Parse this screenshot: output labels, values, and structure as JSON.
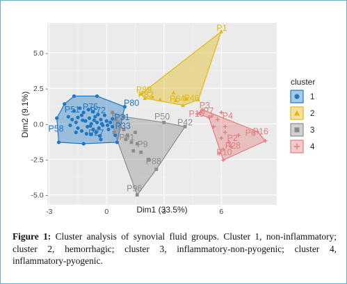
{
  "chart_data": {
    "type": "scatter",
    "title": "",
    "xlabel": "Dim1 (33.5%)",
    "ylabel": "Dim2 (9.1%)",
    "xlim": [
      -3.1,
      8.9
    ],
    "ylim": [
      -5.7,
      7.1
    ],
    "xticks": [
      -3,
      0,
      3,
      6
    ],
    "xtick_labels": [
      "-3",
      "0",
      "3",
      "6"
    ],
    "yticks": [
      5.0,
      2.5,
      0.0,
      -2.5,
      -5.0
    ],
    "ytick_labels": [
      "5.0 -",
      "2.5 -",
      "0.0 -",
      "-2.5 -",
      "-5.0 -"
    ],
    "grid": true,
    "legend_position": "right",
    "legend_title": "cluster",
    "series": [
      {
        "name": "1",
        "color": "#1f77c4",
        "marker": "circle",
        "hull": [
          [
            -2.5,
            -1.3
          ],
          [
            -2.6,
            0.4
          ],
          [
            -2.2,
            1.4
          ],
          [
            -1.7,
            1.95
          ],
          [
            -0.5,
            1.95
          ],
          [
            0.95,
            1.2
          ],
          [
            0.55,
            -1.3
          ],
          [
            -1.2,
            -1.4
          ]
        ],
        "points": [
          [
            -2.0,
            0.5
          ],
          [
            -1.8,
            0.3
          ],
          [
            -1.6,
            0.1
          ],
          [
            -1.5,
            -0.3
          ],
          [
            -1.3,
            0.6
          ],
          [
            -1.1,
            0.2
          ],
          [
            -1.0,
            -0.2
          ],
          [
            -0.9,
            0.4
          ],
          [
            -0.8,
            0.0
          ],
          [
            -0.7,
            -0.4
          ],
          [
            -0.6,
            0.5
          ],
          [
            -0.5,
            0.1
          ],
          [
            -0.4,
            -0.3
          ],
          [
            -0.3,
            0.3
          ],
          [
            -0.2,
            -0.1
          ],
          [
            -0.1,
            0.6
          ],
          [
            0.0,
            0.2
          ],
          [
            0.1,
            -0.4
          ],
          [
            0.2,
            0.1
          ],
          [
            0.3,
            -0.2
          ],
          [
            -1.7,
            0.9
          ],
          [
            -1.4,
            1.1
          ],
          [
            -1.2,
            0.8
          ],
          [
            -0.95,
            1.0
          ],
          [
            -0.7,
            0.85
          ],
          [
            -1.9,
            -0.1
          ],
          [
            -1.6,
            -0.6
          ],
          [
            -1.3,
            -0.5
          ],
          [
            -1.05,
            -0.7
          ],
          [
            -0.8,
            -0.75
          ],
          [
            -0.55,
            -0.6
          ],
          [
            -0.35,
            -0.85
          ],
          [
            -1.5,
            0.45
          ],
          [
            -1.25,
            0.25
          ],
          [
            -0.85,
            -0.15
          ],
          [
            -0.65,
            0.25
          ],
          [
            -0.45,
            0.65
          ],
          [
            -0.25,
            0.0
          ],
          [
            0.05,
            -0.1
          ],
          [
            0.3,
            0.35
          ],
          [
            -2.5,
            -1.3
          ],
          [
            -2.2,
            1.4
          ],
          [
            -1.7,
            1.95
          ],
          [
            -0.5,
            1.95
          ],
          [
            0.95,
            1.2
          ],
          [
            0.55,
            -1.3
          ],
          [
            -1.2,
            -1.4
          ],
          [
            -2.6,
            0.4
          ],
          [
            -0.3,
            -1.1
          ],
          [
            0.45,
            -0.8
          ]
        ],
        "labels": [
          {
            "text": "P80",
            "x": 0.9,
            "y": 1.25
          },
          {
            "text": "P75",
            "x": -1.25,
            "y": 1.0
          },
          {
            "text": "P51",
            "x": -2.2,
            "y": 0.8
          },
          {
            "text": "P72",
            "x": -0.85,
            "y": 0.75
          },
          {
            "text": "P58",
            "x": -3.05,
            "y": -0.55
          },
          {
            "text": "P27",
            "x": -0.95,
            "y": -0.85
          },
          {
            "text": "P31",
            "x": 0.4,
            "y": 0.25
          },
          {
            "text": "P33",
            "x": 0.45,
            "y": -0.35
          }
        ]
      },
      {
        "name": "2",
        "color": "#e2b811",
        "marker": "triangle",
        "hull": [
          [
            6.0,
            6.5
          ],
          [
            1.8,
            2.1
          ],
          [
            2.0,
            1.8
          ],
          [
            4.0,
            1.3
          ],
          [
            4.8,
            1.7
          ]
        ],
        "points": [
          [
            6.0,
            6.5
          ],
          [
            1.8,
            2.1
          ],
          [
            2.0,
            1.8
          ],
          [
            4.0,
            1.3
          ],
          [
            4.8,
            1.7
          ],
          [
            3.5,
            2.2
          ],
          [
            3.6,
            1.65
          ],
          [
            4.2,
            1.75
          ],
          [
            2.4,
            1.9
          ],
          [
            2.8,
            1.7
          ]
        ],
        "labels": [
          {
            "text": "P1",
            "x": 5.75,
            "y": 6.55
          },
          {
            "text": "P89",
            "x": 1.55,
            "y": 2.2
          },
          {
            "text": "P82",
            "x": 1.65,
            "y": 1.85
          },
          {
            "text": "P64",
            "x": 3.3,
            "y": 1.55
          },
          {
            "text": "P46",
            "x": 4.05,
            "y": 1.6
          }
        ]
      },
      {
        "name": "3",
        "color": "#8c8c8c",
        "marker": "square",
        "hull": [
          [
            0.3,
            0.8
          ],
          [
            0.4,
            -0.6
          ],
          [
            1.6,
            -5.0
          ],
          [
            2.6,
            -3.2
          ],
          [
            4.1,
            -0.2
          ],
          [
            3.0,
            0.1
          ],
          [
            0.9,
            0.5
          ]
        ],
        "points": [
          [
            0.3,
            0.8
          ],
          [
            0.4,
            -0.6
          ],
          [
            1.6,
            -5.0
          ],
          [
            2.6,
            -3.2
          ],
          [
            4.1,
            -0.2
          ],
          [
            3.0,
            0.1
          ],
          [
            0.9,
            0.5
          ],
          [
            1.3,
            -1.3
          ],
          [
            1.6,
            -1.4
          ],
          [
            1.1,
            -0.8
          ],
          [
            0.9,
            -0.4
          ],
          [
            0.6,
            0.1
          ],
          [
            1.8,
            -2.0
          ],
          [
            2.2,
            -2.5
          ],
          [
            1.4,
            -1.9
          ],
          [
            0.7,
            -0.2
          ],
          [
            1.5,
            -0.6
          ],
          [
            0.5,
            0.3
          ],
          [
            1.0,
            -1.1
          ]
        ],
        "labels": [
          {
            "text": "P50",
            "x": 2.5,
            "y": 0.3
          },
          {
            "text": "P42",
            "x": 3.7,
            "y": -0.1
          },
          {
            "text": "P91",
            "x": 0.65,
            "y": -1.15
          },
          {
            "text": "P9",
            "x": 1.6,
            "y": -1.65
          },
          {
            "text": "P88",
            "x": 2.05,
            "y": -2.85
          },
          {
            "text": "P96",
            "x": 1.05,
            "y": -4.75
          }
        ]
      },
      {
        "name": "4",
        "color": "#e37d7d",
        "marker": "plus",
        "hull": [
          [
            5.0,
            1.0
          ],
          [
            4.9,
            0.8
          ],
          [
            4.75,
            0.7
          ],
          [
            5.35,
            0.45
          ],
          [
            6.1,
            -2.55
          ],
          [
            8.3,
            -1.2
          ],
          [
            7.9,
            -0.55
          ]
        ],
        "points": [
          [
            5.0,
            1.0
          ],
          [
            4.9,
            0.8
          ],
          [
            4.75,
            0.7
          ],
          [
            5.35,
            0.45
          ],
          [
            6.1,
            -2.55
          ],
          [
            8.3,
            -1.2
          ],
          [
            7.9,
            -0.55
          ],
          [
            6.0,
            0.8
          ],
          [
            5.8,
            0.3
          ],
          [
            6.0,
            -1.0
          ],
          [
            6.4,
            -1.3
          ],
          [
            6.1,
            -1.8
          ],
          [
            5.6,
            -0.2
          ],
          [
            6.2,
            -0.6
          ],
          [
            6.9,
            -0.8
          ],
          [
            6.5,
            -1.6
          ],
          [
            5.9,
            -2.1
          ],
          [
            5.5,
            0.55
          ],
          [
            6.2,
            -0.2
          ]
        ],
        "labels": [
          {
            "text": "P3",
            "x": 4.85,
            "y": 1.1
          },
          {
            "text": "P7",
            "x": 5.05,
            "y": 0.7
          },
          {
            "text": "P15",
            "x": 4.3,
            "y": 0.5
          },
          {
            "text": "P4",
            "x": 6.05,
            "y": 0.35
          },
          {
            "text": "P6",
            "x": 7.25,
            "y": -0.85
          },
          {
            "text": "P16",
            "x": 7.65,
            "y": -0.75
          },
          {
            "text": "P2",
            "x": 6.3,
            "y": -1.2
          },
          {
            "text": "P28",
            "x": 6.2,
            "y": -1.75
          },
          {
            "text": "P10",
            "x": 5.75,
            "y": -2.2
          }
        ]
      }
    ]
  },
  "caption": {
    "label": "Figure 1:",
    "text": " Cluster analysis of synovial fluid groups. Cluster 1, non-inflammatory; cluster 2, hemorrhagic; cluster 3, inflammatory-non-pyogenic; cluster 4, inflammatory-pyogenic."
  }
}
